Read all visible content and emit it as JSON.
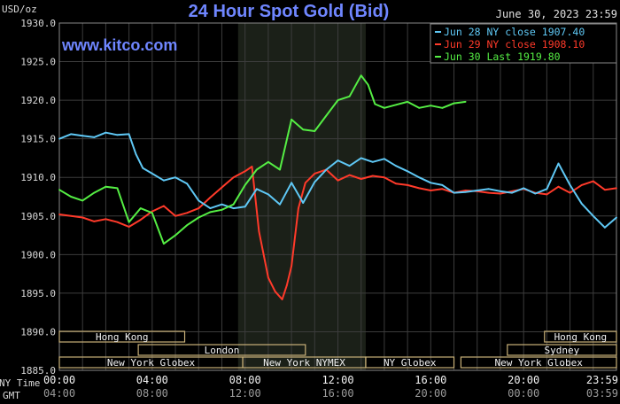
{
  "chart_data": {
    "type": "line",
    "title": "24 Hour Spot Gold (Bid)",
    "date_label": "June 30, 2023 23:59",
    "y_unit_label": "USD/oz",
    "watermark": "www.kitco.com",
    "ylim": [
      1885.0,
      1930.0
    ],
    "y_ticks": [
      "1930.0",
      "1925.0",
      "1920.0",
      "1915.0",
      "1910.0",
      "1905.0",
      "1900.0",
      "1895.0",
      "1890.0",
      "1885.0"
    ],
    "x_hours": [
      0,
      4,
      8,
      12,
      16,
      20,
      24
    ],
    "x_ticks_ny": [
      "00:00",
      "04:00",
      "08:00",
      "12:00",
      "16:00",
      "20:00",
      "23:59"
    ],
    "x_ticks_gmt": [
      "04:00",
      "08:00",
      "12:00",
      "16:00",
      "20:00",
      "00:00",
      "03:59"
    ],
    "x_axis_label_ny": "NY Time",
    "x_axis_label_gmt": "GMT",
    "shaded_region_hours": [
      7.7,
      13.2
    ],
    "grid": true,
    "legend_position": "top-right",
    "legend": [
      {
        "label": "Jun 28 NY close 1907.40",
        "color": "#5fc8f5"
      },
      {
        "label": "Jun 29 NY close 1908.10",
        "color": "#ff3a2a"
      },
      {
        "label": "Jun 30 Last 1919.80",
        "color": "#55ee44"
      }
    ],
    "sessions": [
      {
        "label": "Hong Kong",
        "row": 1,
        "start": 0,
        "end": 5.4
      },
      {
        "label": "Hong Kong",
        "row": 1,
        "start": 20.9,
        "end": 24
      },
      {
        "label": "London",
        "row": 2,
        "start": 3.4,
        "end": 10.6
      },
      {
        "label": "Sydney",
        "row": 2,
        "start": 19.3,
        "end": 24
      },
      {
        "label": "New York Globex",
        "row": 3,
        "start": 0,
        "end": 7.9
      },
      {
        "label": "New York NYMEX",
        "row": 3,
        "start": 7.9,
        "end": 13.2
      },
      {
        "label": "NY Globex",
        "row": 3,
        "start": 13.2,
        "end": 17.0
      },
      {
        "label": "New York Globex",
        "row": 3,
        "start": 17.3,
        "end": 24
      }
    ],
    "series": [
      {
        "name": "Jun 28 NY close 1907.40",
        "color": "#5fc8f5",
        "x": [
          0,
          0.5,
          1,
          1.5,
          2,
          2.5,
          3,
          3.3,
          3.6,
          4,
          4.5,
          5,
          5.5,
          6,
          6.5,
          7,
          7.5,
          8,
          8.5,
          9,
          9.5,
          10,
          10.5,
          11,
          11.5,
          12,
          12.5,
          13,
          13.5,
          14,
          14.5,
          15,
          15.5,
          16,
          16.5,
          17,
          17.5,
          18,
          18.5,
          19,
          19.5,
          20,
          20.5,
          21,
          21.5,
          22,
          22.5,
          23,
          23.5,
          24
        ],
        "y": [
          1915.0,
          1915.6,
          1915.4,
          1915.2,
          1915.8,
          1915.5,
          1915.6,
          1913.0,
          1911.2,
          1910.5,
          1909.6,
          1910.0,
          1909.2,
          1907.0,
          1906.0,
          1906.5,
          1906.0,
          1906.2,
          1908.5,
          1907.8,
          1906.5,
          1909.3,
          1906.7,
          1909.4,
          1911.0,
          1912.2,
          1911.5,
          1912.5,
          1912.0,
          1912.4,
          1911.5,
          1910.8,
          1910.0,
          1909.3,
          1909.0,
          1908.0,
          1908.1,
          1908.3,
          1908.5,
          1908.2,
          1908.0,
          1908.6,
          1907.9,
          1908.5,
          1911.8,
          1909.0,
          1906.6,
          1905.0,
          1903.5,
          1904.8
        ]
      },
      {
        "name": "Jun 29 NY close 1908.10",
        "color": "#ff3a2a",
        "x": [
          0,
          0.5,
          1,
          1.5,
          2,
          2.5,
          3,
          3.5,
          4,
          4.5,
          5,
          5.5,
          6,
          6.5,
          7,
          7.5,
          8,
          8.3,
          8.6,
          9,
          9.3,
          9.6,
          9.8,
          10,
          10.3,
          10.6,
          11,
          11.5,
          12,
          12.5,
          13,
          13.5,
          14,
          14.5,
          15,
          15.5,
          16,
          16.5,
          17,
          17.5,
          18,
          18.5,
          19,
          19.5,
          20,
          20.5,
          21,
          21.5,
          22,
          22.5,
          23,
          23.5,
          24
        ],
        "y": [
          1905.2,
          1905.0,
          1904.8,
          1904.3,
          1904.6,
          1904.2,
          1903.6,
          1904.5,
          1905.6,
          1906.3,
          1905.0,
          1905.4,
          1906.0,
          1907.4,
          1908.7,
          1910.0,
          1910.8,
          1911.4,
          1903.0,
          1897.0,
          1895.2,
          1894.2,
          1896.0,
          1898.5,
          1906.0,
          1909.3,
          1910.5,
          1911.0,
          1909.6,
          1910.3,
          1909.8,
          1910.2,
          1910.0,
          1909.2,
          1909.0,
          1908.6,
          1908.3,
          1908.5,
          1908.0,
          1908.3,
          1908.2,
          1908.0,
          1907.9,
          1908.2,
          1908.5,
          1908.0,
          1907.8,
          1908.8,
          1908.0,
          1909.0,
          1909.5,
          1908.4,
          1908.6
        ]
      },
      {
        "name": "Jun 30 Last 1919.80",
        "color": "#55ee44",
        "x": [
          0,
          0.5,
          1,
          1.5,
          2,
          2.5,
          3,
          3.5,
          4,
          4.5,
          5,
          5.5,
          6,
          6.5,
          7,
          7.5,
          8,
          8.5,
          9,
          9.5,
          10,
          10.5,
          11,
          11.5,
          12,
          12.5,
          13,
          13.3,
          13.6,
          14,
          14.5,
          15,
          15.5,
          16,
          16.5,
          17,
          17.5
        ],
        "y": [
          1908.4,
          1907.5,
          1907.0,
          1908.0,
          1908.8,
          1908.6,
          1904.2,
          1906.0,
          1905.4,
          1901.4,
          1902.5,
          1903.8,
          1904.8,
          1905.5,
          1905.8,
          1906.5,
          1909.0,
          1911.0,
          1912.0,
          1911.0,
          1917.5,
          1916.2,
          1916.0,
          1918.0,
          1920.0,
          1920.5,
          1923.2,
          1922.0,
          1919.5,
          1919.0,
          1919.4,
          1919.8,
          1919.0,
          1919.3,
          1919.0,
          1919.6,
          1919.8
        ]
      }
    ]
  }
}
